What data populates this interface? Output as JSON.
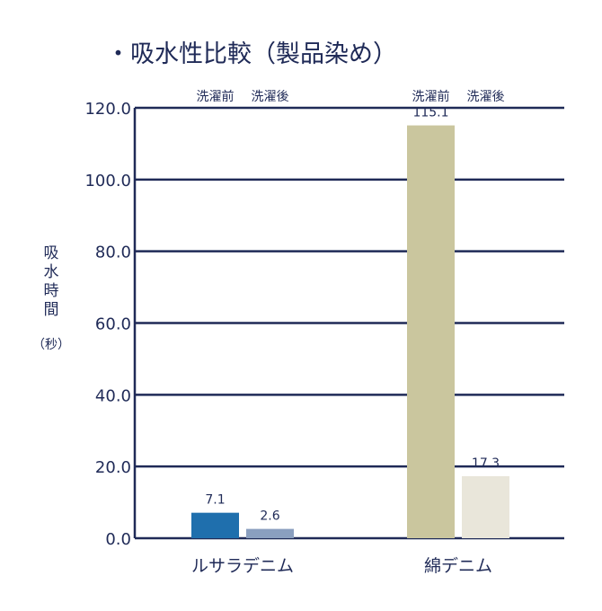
{
  "chart_data": {
    "type": "bar",
    "title": "・吸水性比較（製品染め）",
    "ylabel_lines": [
      "吸",
      "水",
      "時",
      "間"
    ],
    "ylabel_unit": "（秒）",
    "xlabel": "",
    "ylim": [
      0,
      120
    ],
    "yticks": [
      "0.0",
      "20.0",
      "40.0",
      "60.0",
      "80.0",
      "100.0",
      "120.0"
    ],
    "grid": true,
    "categories": [
      "ルサラデニム",
      "綿デニム"
    ],
    "series": [
      {
        "name": "洗濯前",
        "values": [
          7.1,
          115.1
        ]
      },
      {
        "name": "洗濯後",
        "values": [
          2.6,
          17.3
        ]
      }
    ],
    "value_labels": [
      [
        "7.1",
        "115.1"
      ],
      [
        "2.6",
        "17.3"
      ]
    ],
    "bar_colors": [
      [
        "#1f6fad",
        "#cac69e"
      ],
      [
        "#8a9fbf",
        "#e9e6da"
      ]
    ],
    "axis_color": "#1f2a57",
    "grid_color": "#1f2a57"
  }
}
